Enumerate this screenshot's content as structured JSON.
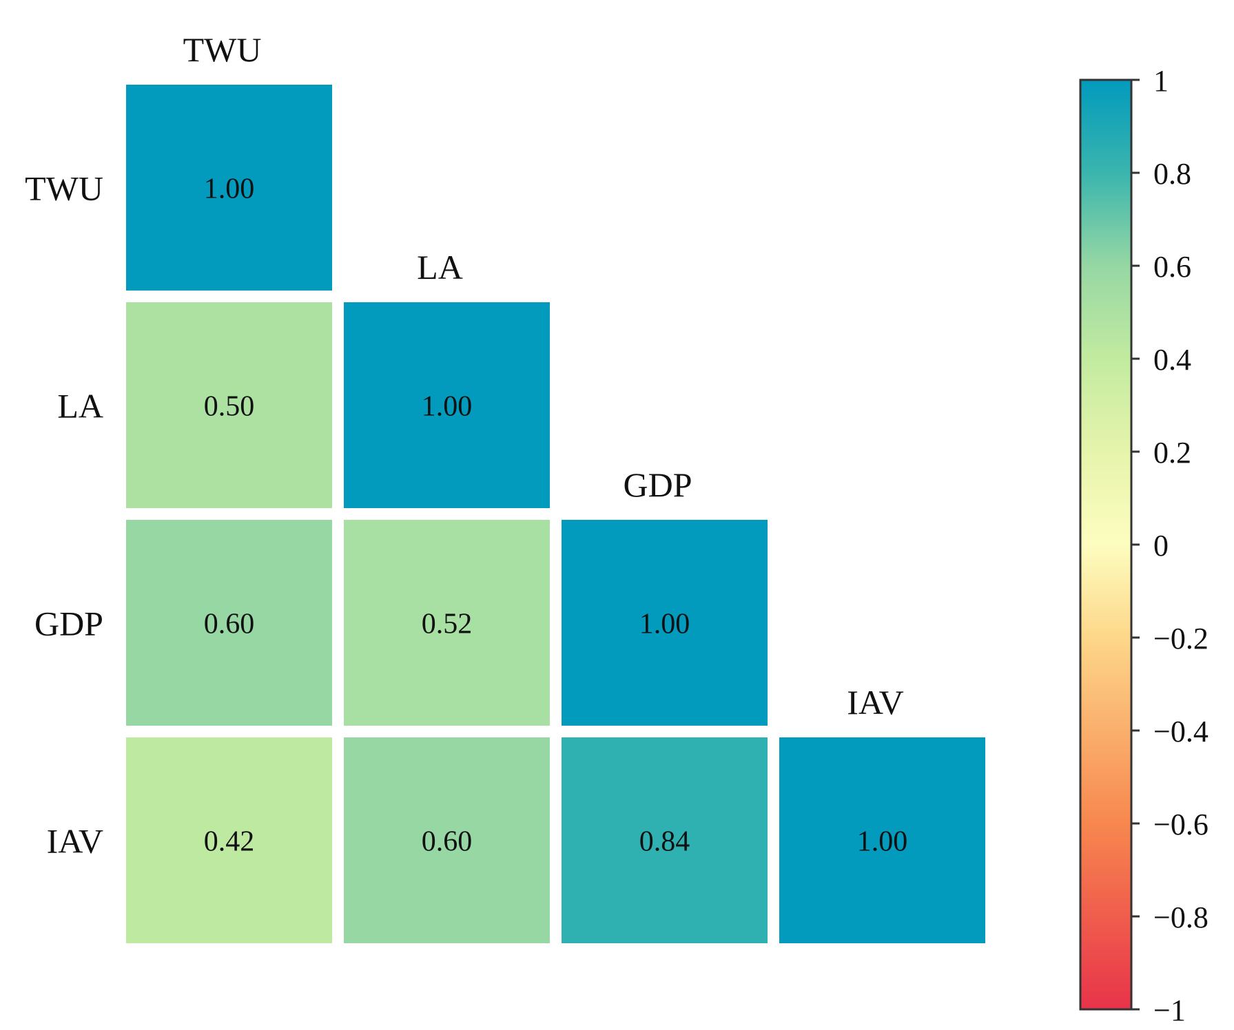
{
  "chart_data": {
    "type": "heatmap",
    "layout": "lower-triangle",
    "variables": [
      "TWU",
      "LA",
      "GDP",
      "IAV"
    ],
    "matrix": [
      [
        1.0,
        null,
        null,
        null
      ],
      [
        0.5,
        1.0,
        null,
        null
      ],
      [
        0.6,
        0.52,
        1.0,
        null
      ],
      [
        0.42,
        0.6,
        0.84,
        1.0
      ]
    ],
    "value_labels": [
      [
        "1.00",
        null,
        null,
        null
      ],
      [
        "0.50",
        "1.00",
        null,
        null
      ],
      [
        "0.60",
        "0.52",
        "1.00",
        null
      ],
      [
        "0.42",
        "0.60",
        "0.84",
        "1.00"
      ]
    ],
    "colorbar": {
      "range": [
        -1,
        1
      ],
      "ticks": [
        1,
        0.8,
        0.6,
        0.4,
        0.2,
        0,
        -0.2,
        -0.4,
        -0.6,
        -0.8,
        -1
      ],
      "tick_labels": [
        "1",
        "0.8",
        "0.6",
        "0.4",
        "0.2",
        "0",
        "−0.2",
        "−0.4",
        "−0.6",
        "−0.8",
        "−1"
      ],
      "placement": "right",
      "colors": [
        {
          "v": -1.0,
          "c": "#e8334a"
        },
        {
          "v": -0.6,
          "c": "#f7874f"
        },
        {
          "v": -0.2,
          "c": "#fdd78a"
        },
        {
          "v": 0.0,
          "c": "#fdfdbf"
        },
        {
          "v": 0.2,
          "c": "#e6f4ab"
        },
        {
          "v": 0.4,
          "c": "#c2eba0"
        },
        {
          "v": 0.6,
          "c": "#96d7a4"
        },
        {
          "v": 0.8,
          "c": "#3ab5ae"
        },
        {
          "v": 1.0,
          "c": "#029abd"
        }
      ]
    }
  }
}
